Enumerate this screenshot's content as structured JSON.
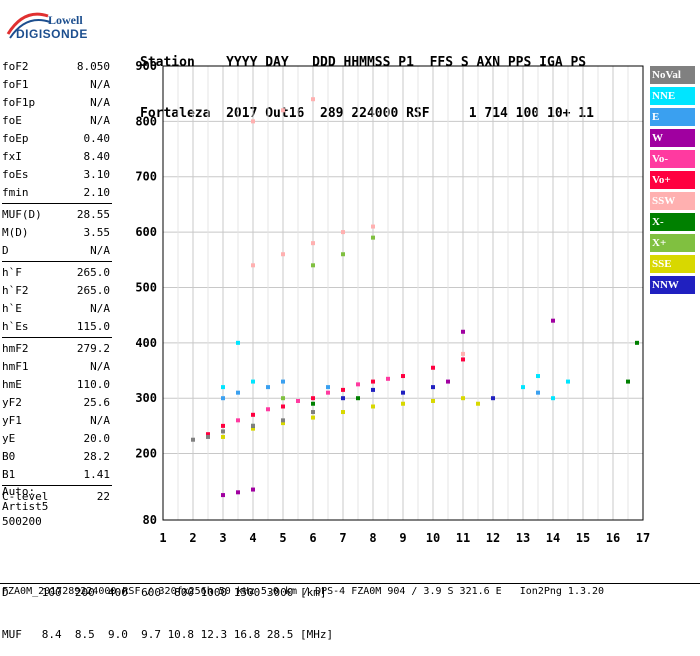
{
  "logo": {
    "line1": "Lowell",
    "line2": "DIGISONDE"
  },
  "header": {
    "labels": "Station    YYYY DAY   DDD HHMMSS P1  FFS S AXN PPS IGA PS",
    "values": "Fortaleza  2017 Out16  289 224000 RSF     1 714 100 10+ 11"
  },
  "params": [
    {
      "k": "foF2",
      "v": "8.050"
    },
    {
      "k": "foF1",
      "v": "N/A"
    },
    {
      "k": "foF1p",
      "v": "N/A"
    },
    {
      "k": "foE",
      "v": "N/A"
    },
    {
      "k": "foEp",
      "v": "0.40"
    },
    {
      "k": "fxI",
      "v": "8.40"
    },
    {
      "k": "foEs",
      "v": "3.10"
    },
    {
      "k": "fmin",
      "v": "2.10"
    },
    {
      "k": "MUF(D)",
      "v": "28.55"
    },
    {
      "k": "M(D)",
      "v": "3.55"
    },
    {
      "k": "D",
      "v": "N/A"
    },
    {
      "k": "h`F",
      "v": "265.0"
    },
    {
      "k": "h`F2",
      "v": "265.0"
    },
    {
      "k": "h`E",
      "v": "N/A"
    },
    {
      "k": "h`Es",
      "v": "115.0"
    },
    {
      "k": "hmF2",
      "v": "279.2"
    },
    {
      "k": "hmF1",
      "v": "N/A"
    },
    {
      "k": "hmE",
      "v": "110.0"
    },
    {
      "k": "yF2",
      "v": "25.6"
    },
    {
      "k": "yF1",
      "v": "N/A"
    },
    {
      "k": "yE",
      "v": "20.0"
    },
    {
      "k": "B0",
      "v": "28.2"
    },
    {
      "k": "B1",
      "v": "1.41"
    },
    {
      "k": "C-level",
      "v": "22"
    }
  ],
  "auto": {
    "line1": "Auto:",
    "line2": "Artist5",
    "line3": "500200"
  },
  "legend": [
    {
      "label": "NoVal",
      "color": "#808080"
    },
    {
      "label": "NNE",
      "color": "#00e5ff"
    },
    {
      "label": "E",
      "color": "#3aa0f0"
    },
    {
      "label": "W",
      "color": "#a000a0"
    },
    {
      "label": "Vo-",
      "color": "#ff3aa0"
    },
    {
      "label": "Vo+",
      "color": "#ff0040"
    },
    {
      "label": "SSW",
      "color": "#ffb0b0"
    },
    {
      "label": "X-",
      "color": "#008000"
    },
    {
      "label": "X+",
      "color": "#80c040"
    },
    {
      "label": "SSE",
      "color": "#d8d800"
    },
    {
      "label": "NNW",
      "color": "#2020c0"
    }
  ],
  "footer": {
    "line1": "D     100  200  400  600  800 1000 1500 3000 [km]",
    "line2": "MUF   8.4  8.5  9.0  9.7 10.8 12.3 16.8 28.5 [MHz]",
    "line3": "FZA0M_2017289224000.RSF / 320fx256h 50 kHz 5.0 km / DPS-4 FZA0M 904 / 3.9 S 321.6 E   Ion2Png 1.3.20"
  },
  "chart_data": {
    "type": "scatter",
    "xlabel": "",
    "ylabel": "",
    "xlim": [
      1,
      17
    ],
    "ylim": [
      80,
      900
    ],
    "xticks": [
      1,
      2,
      3,
      4,
      5,
      6,
      7,
      8,
      9,
      10,
      11,
      12,
      13,
      14,
      15,
      16,
      17
    ],
    "yticks": [
      80,
      200,
      300,
      400,
      500,
      600,
      700,
      800,
      900
    ],
    "grid": true,
    "legend_position": "right",
    "series": [
      {
        "name": "Vo+",
        "color": "#ff0040",
        "points": [
          [
            2.5,
            235
          ],
          [
            3.0,
            250
          ],
          [
            4.0,
            270
          ],
          [
            5.0,
            285
          ],
          [
            6.0,
            300
          ],
          [
            7.0,
            315
          ],
          [
            8.0,
            330
          ],
          [
            9.0,
            340
          ],
          [
            10.0,
            355
          ],
          [
            11.0,
            370
          ]
        ]
      },
      {
        "name": "Vo-",
        "color": "#ff3aa0",
        "points": [
          [
            3.5,
            260
          ],
          [
            4.5,
            280
          ],
          [
            5.5,
            295
          ],
          [
            6.5,
            310
          ],
          [
            7.5,
            325
          ],
          [
            8.5,
            335
          ]
        ]
      },
      {
        "name": "SSE",
        "color": "#d8d800",
        "points": [
          [
            3.0,
            230
          ],
          [
            4.0,
            245
          ],
          [
            5.0,
            255
          ],
          [
            6.0,
            265
          ],
          [
            7.0,
            275
          ],
          [
            8.0,
            285
          ],
          [
            9.0,
            290
          ],
          [
            10.0,
            295
          ],
          [
            11.0,
            300
          ],
          [
            11.5,
            290
          ]
        ]
      },
      {
        "name": "NNE",
        "color": "#00e5ff",
        "points": [
          [
            3.0,
            320
          ],
          [
            3.5,
            400
          ],
          [
            4.0,
            330
          ],
          [
            13.0,
            320
          ],
          [
            13.5,
            340
          ],
          [
            14.0,
            300
          ],
          [
            14.5,
            330
          ]
        ]
      },
      {
        "name": "E",
        "color": "#3aa0f0",
        "points": [
          [
            3.0,
            300
          ],
          [
            3.5,
            310
          ],
          [
            4.5,
            320
          ],
          [
            5.0,
            330
          ],
          [
            6.5,
            320
          ],
          [
            13.5,
            310
          ]
        ]
      },
      {
        "name": "W",
        "color": "#a000a0",
        "points": [
          [
            3.0,
            125
          ],
          [
            3.5,
            130
          ],
          [
            4.0,
            135
          ],
          [
            10.5,
            330
          ],
          [
            11.0,
            420
          ],
          [
            14.0,
            440
          ]
        ]
      },
      {
        "name": "SSW",
        "color": "#ffb0b0",
        "points": [
          [
            4.0,
            540
          ],
          [
            5.0,
            560
          ],
          [
            6.0,
            580
          ],
          [
            7.0,
            600
          ],
          [
            8.0,
            610
          ],
          [
            4.0,
            800
          ],
          [
            5.0,
            820
          ],
          [
            6.0,
            840
          ],
          [
            11.0,
            380
          ]
        ]
      },
      {
        "name": "NNW",
        "color": "#2020c0",
        "points": [
          [
            7.0,
            300
          ],
          [
            8.0,
            315
          ],
          [
            9.0,
            310
          ],
          [
            10.0,
            320
          ],
          [
            12.0,
            300
          ]
        ]
      },
      {
        "name": "X-",
        "color": "#008000",
        "points": [
          [
            4.0,
            250
          ],
          [
            6.0,
            290
          ],
          [
            7.5,
            300
          ],
          [
            16.5,
            330
          ],
          [
            16.8,
            400
          ]
        ]
      },
      {
        "name": "X+",
        "color": "#80c040",
        "points": [
          [
            5.0,
            300
          ],
          [
            6.0,
            540
          ],
          [
            7.0,
            560
          ],
          [
            8.0,
            590
          ]
        ]
      },
      {
        "name": "NoVal",
        "color": "#808080",
        "points": [
          [
            2.0,
            225
          ],
          [
            2.5,
            230
          ],
          [
            3.0,
            240
          ],
          [
            4.0,
            250
          ],
          [
            5.0,
            260
          ],
          [
            6.0,
            275
          ]
        ]
      }
    ]
  }
}
